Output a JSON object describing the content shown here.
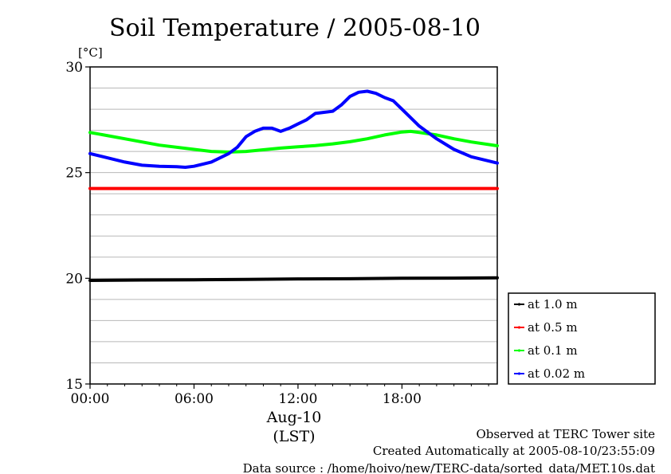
{
  "chart_data": {
    "type": "line",
    "title": "Soil Temperature / 2005-08-10",
    "ylabel": "[°C]",
    "ylim": [
      15,
      30
    ],
    "yticks": [
      15,
      20,
      25,
      30
    ],
    "xlim": [
      0,
      23.5
    ],
    "xticks": [
      {
        "value": 0,
        "label": "00:00"
      },
      {
        "value": 6,
        "label": "06:00"
      },
      {
        "value": 12,
        "label": "12:00"
      },
      {
        "value": 18,
        "label": "18:00"
      }
    ],
    "xlabel_date": "Aug-10",
    "xlabel_unit": "(LST)",
    "grid": true,
    "legend_position": "right",
    "series": [
      {
        "name": "at 1.0 m",
        "color": "#000000",
        "x": [
          0,
          3,
          6,
          9,
          12,
          15,
          18,
          21,
          23.5
        ],
        "values": [
          19.9,
          19.92,
          19.93,
          19.95,
          19.97,
          19.98,
          20.0,
          20.01,
          20.02
        ]
      },
      {
        "name": "at 0.5 m",
        "color": "#ff0000",
        "x": [
          0,
          6,
          12,
          18,
          23.5
        ],
        "values": [
          24.25,
          24.25,
          24.25,
          24.25,
          24.25
        ]
      },
      {
        "name": "at 0.1 m",
        "color": "#00ff00",
        "x": [
          0,
          2,
          4,
          6,
          7,
          8,
          9,
          10,
          11,
          12,
          13,
          14,
          15,
          16,
          17,
          18,
          18.5,
          19,
          20,
          21,
          22,
          23.5
        ],
        "values": [
          26.9,
          26.6,
          26.3,
          26.1,
          26.0,
          25.97,
          26.0,
          26.08,
          26.16,
          26.22,
          26.28,
          26.36,
          26.46,
          26.6,
          26.78,
          26.92,
          26.95,
          26.9,
          26.78,
          26.6,
          26.45,
          26.27
        ]
      },
      {
        "name": "at 0.02 m",
        "color": "#0000ff",
        "x": [
          0,
          1,
          2,
          3,
          4,
          5,
          5.5,
          6,
          7,
          8,
          8.5,
          9,
          9.5,
          10,
          10.5,
          11,
          11.5,
          12,
          12.5,
          13,
          13.5,
          14,
          14.5,
          15,
          15.5,
          16,
          16.5,
          17,
          17.5,
          18,
          18.5,
          19,
          20,
          21,
          22,
          23.5
        ],
        "values": [
          25.9,
          25.7,
          25.5,
          25.35,
          25.3,
          25.28,
          25.25,
          25.3,
          25.5,
          25.9,
          26.2,
          26.7,
          26.95,
          27.1,
          27.1,
          26.95,
          27.1,
          27.3,
          27.5,
          27.8,
          27.85,
          27.9,
          28.2,
          28.6,
          28.8,
          28.85,
          28.75,
          28.55,
          28.4,
          28.0,
          27.6,
          27.2,
          26.6,
          26.1,
          25.75,
          25.45
        ]
      }
    ]
  },
  "footer": {
    "site": "Observed at TERC Tower site",
    "created": "Created Automatically at 2005-08-10/23:55:09",
    "source": "Data source : /home/hoivo/new/TERC-data/sorted_data/MET.10s.dat"
  }
}
